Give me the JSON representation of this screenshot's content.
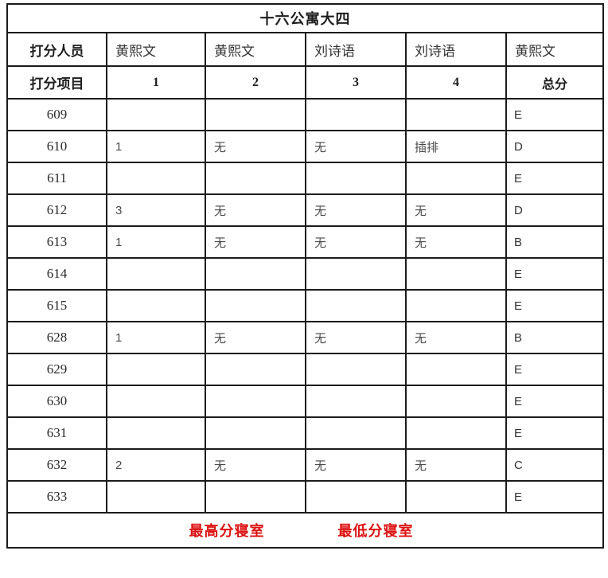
{
  "title": "十六公寓大四",
  "table": {
    "rater_header": {
      "label": "打分人员",
      "names": [
        "黄熙文",
        "黄熙文",
        "刘诗语",
        "刘诗语",
        "黄熙文"
      ]
    },
    "item_header": {
      "label": "打分项目",
      "columns": [
        "1",
        "2",
        "3",
        "4",
        "总分"
      ]
    },
    "rows": [
      {
        "room": "609",
        "scores": [
          "",
          "",
          "",
          ""
        ],
        "total": "E"
      },
      {
        "room": "610",
        "scores": [
          "1",
          "无",
          "无",
          "插排"
        ],
        "total": "D"
      },
      {
        "room": "611",
        "scores": [
          "",
          "",
          "",
          ""
        ],
        "total": "E"
      },
      {
        "room": "612",
        "scores": [
          "3",
          "无",
          "无",
          "无"
        ],
        "total": "D"
      },
      {
        "room": "613",
        "scores": [
          "1",
          "无",
          "无",
          "无"
        ],
        "total": "B"
      },
      {
        "room": "614",
        "scores": [
          "",
          "",
          "",
          ""
        ],
        "total": "E"
      },
      {
        "room": "615",
        "scores": [
          "",
          "",
          "",
          ""
        ],
        "total": "E"
      },
      {
        "room": "628",
        "scores": [
          "1",
          "无",
          "无",
          "无"
        ],
        "total": "B"
      },
      {
        "room": "629",
        "scores": [
          "",
          "",
          "",
          ""
        ],
        "total": "E"
      },
      {
        "room": "630",
        "scores": [
          "",
          "",
          "",
          ""
        ],
        "total": "E"
      },
      {
        "room": "631",
        "scores": [
          "",
          "",
          "",
          ""
        ],
        "total": "E"
      },
      {
        "room": "632",
        "scores": [
          "2",
          "无",
          "无",
          "无"
        ],
        "total": "C"
      },
      {
        "room": "633",
        "scores": [
          "",
          "",
          "",
          ""
        ],
        "total": "E"
      }
    ],
    "footer": {
      "highest_label": "最高分寝室",
      "lowest_label": "最低分寝室"
    }
  },
  "colors": {
    "accent_red": "#dd1111",
    "border": "#1b1b1b",
    "text": "#333333"
  }
}
